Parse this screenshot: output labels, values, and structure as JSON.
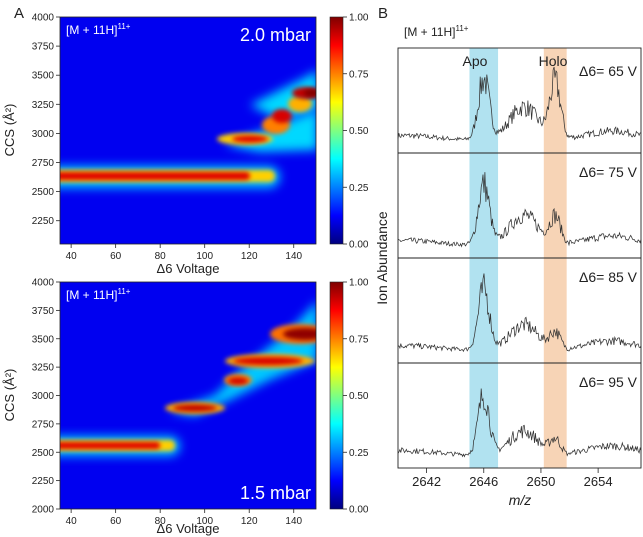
{
  "panel_labels": {
    "a": "A",
    "b": "B"
  },
  "heatmaps": [
    {
      "ion": "[M + 11H]",
      "ion_charge": "11+",
      "pressure": "2.0 mbar",
      "xlabel": "Δ6 Voltage",
      "ylabel": "CCS (Å²)",
      "xticks": [
        40,
        60,
        80,
        100,
        120,
        140
      ],
      "yticks": [
        2250,
        2500,
        2750,
        3000,
        3250,
        3500,
        3750,
        4000
      ],
      "colorbar_ticks": [
        "0.00",
        "0.25",
        "0.50",
        "0.75",
        "1.00"
      ],
      "colormap": [
        "#00007f",
        "#0000ff",
        "#0080ff",
        "#00ffff",
        "#80ff80",
        "#ffff00",
        "#ff8000",
        "#ff0000",
        "#7f0000"
      ]
    },
    {
      "ion": "[M + 11H]",
      "ion_charge": "11+",
      "pressure": "1.5 mbar",
      "xlabel": "Δ6 Voltage",
      "ylabel": "CCS (Å²)",
      "xticks": [
        40,
        60,
        80,
        100,
        120,
        140
      ],
      "yticks": [
        2000,
        2250,
        2500,
        2750,
        3000,
        3250,
        3500,
        3750,
        4000
      ],
      "colorbar_ticks": [
        "0.00",
        "0.25",
        "0.50",
        "0.75",
        "1.00"
      ],
      "colormap": [
        "#00007f",
        "#0000ff",
        "#0080ff",
        "#00ffff",
        "#80ff80",
        "#ffff00",
        "#ff8000",
        "#ff0000",
        "#7f0000"
      ]
    }
  ],
  "spectra": {
    "ion": "[M + 11H]",
    "ion_charge": "11+",
    "xlabel": "m/z",
    "ylabel": "Ion Abundance",
    "xticks": [
      2642,
      2646,
      2650,
      2654
    ],
    "bands": [
      {
        "label": "Apo",
        "color": "#a8dfee"
      },
      {
        "label": "Holo",
        "color": "#f6cfae"
      }
    ],
    "panel_labels": [
      "Δ6= 65 V",
      "Δ6= 75 V",
      "Δ6= 85 V",
      "Δ6= 95 V"
    ]
  },
  "chart_data": [
    {
      "type": "heatmap",
      "title": "[M + 11H]11+ 2.0 mbar",
      "xlabel": "Δ6 Voltage",
      "ylabel": "CCS (Å²)",
      "xlim": [
        35,
        150
      ],
      "ylim": [
        2050,
        4000
      ],
      "zlim": [
        0,
        1
      ],
      "features": [
        {
          "x": [
            35,
            115
          ],
          "ccs": [
            2600,
            2630
          ],
          "intensity": 0.85
        },
        {
          "x": [
            100,
            150
          ],
          "ccs": [
            2950,
            3050
          ],
          "intensity": 0.8
        },
        {
          "x": [
            120,
            140
          ],
          "ccs": [
            3100,
            3250
          ],
          "intensity": 0.85
        },
        {
          "x": [
            135,
            150
          ],
          "ccs": [
            3300,
            3400
          ],
          "intensity": 1.0
        }
      ]
    },
    {
      "type": "heatmap",
      "title": "[M + 11H]11+ 1.5 mbar",
      "xlabel": "Δ6 Voltage",
      "ylabel": "CCS (Å²)",
      "xlim": [
        35,
        150
      ],
      "ylim": [
        2000,
        4000
      ],
      "zlim": [
        0,
        1
      ],
      "features": [
        {
          "x": [
            35,
            85
          ],
          "ccs": [
            2520,
            2550
          ],
          "intensity": 0.85
        },
        {
          "x": [
            80,
            100
          ],
          "ccs": [
            2880,
            2900
          ],
          "intensity": 0.9
        },
        {
          "x": [
            100,
            115
          ],
          "ccs": [
            3100,
            3120
          ],
          "intensity": 0.9
        },
        {
          "x": [
            105,
            150
          ],
          "ccs": [
            3280,
            3320
          ],
          "intensity": 0.85
        },
        {
          "x": [
            125,
            150
          ],
          "ccs": [
            3450,
            3550
          ],
          "intensity": 1.0
        }
      ]
    },
    {
      "type": "line",
      "title": "[M + 11H]11+",
      "xlabel": "m/z",
      "ylabel": "Ion Abundance",
      "xlim": [
        2640,
        2657
      ],
      "series": [
        {
          "name": "Δ6= 65 V",
          "peaks": [
            {
              "mz": 2646.0,
              "rel": 1.0
            },
            {
              "mz": 2648.8,
              "rel": 0.55
            },
            {
              "mz": 2651.0,
              "rel": 0.92
            }
          ]
        },
        {
          "name": "Δ6= 75 V",
          "peaks": [
            {
              "mz": 2646.0,
              "rel": 1.0
            },
            {
              "mz": 2648.8,
              "rel": 0.5
            },
            {
              "mz": 2651.0,
              "rel": 0.45
            }
          ]
        },
        {
          "name": "Δ6= 85 V",
          "peaks": [
            {
              "mz": 2646.0,
              "rel": 1.0
            },
            {
              "mz": 2648.8,
              "rel": 0.42
            },
            {
              "mz": 2651.0,
              "rel": 0.28
            }
          ]
        },
        {
          "name": "Δ6= 95 V",
          "peaks": [
            {
              "mz": 2646.0,
              "rel": 1.0
            },
            {
              "mz": 2648.8,
              "rel": 0.4
            },
            {
              "mz": 2651.0,
              "rel": 0.25
            }
          ]
        }
      ]
    }
  ]
}
